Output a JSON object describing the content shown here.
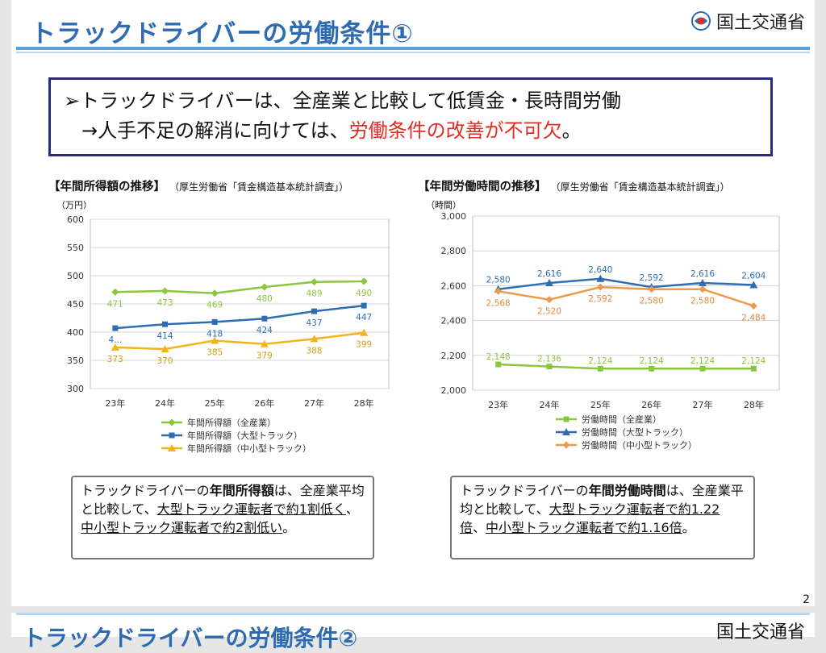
{
  "header": {
    "title": "トラックドライバーの労働条件①",
    "ministry": "国土交通省"
  },
  "summary": {
    "line1": "➢トラックドライバーは、全産業と比較して低賃金・長時間労働",
    "line2_pre": "→人手不足の解消に向けては、",
    "line2_red": "労働条件の改善が不可欠",
    "line2_post": "。"
  },
  "colors": {
    "green": "#8cc63e",
    "blue": "#2e6db4",
    "orange": "#f5b31b",
    "orange2": "#ee9a4d",
    "title": "#2f6bb0",
    "frame": "#2b2a78",
    "red": "#e32d22"
  },
  "chart_data": [
    {
      "type": "line",
      "title": "【年間所得額の推移】",
      "source": "（厚生労働省「賃金構造基本統計調査」）",
      "ylabel": "（万円）",
      "ylim": [
        300,
        600
      ],
      "yticks": [
        "300",
        "350",
        "400",
        "450",
        "500",
        "550",
        "600"
      ],
      "categories": [
        "23年",
        "24年",
        "25年",
        "26年",
        "27年",
        "28年"
      ],
      "series": [
        {
          "name": "年間所得額（全産業）",
          "values": [
            471,
            473,
            469,
            480,
            489,
            490
          ],
          "labels": [
            "471",
            "473",
            "469",
            "480",
            "489",
            "490"
          ]
        },
        {
          "name": "年間所得額（大型トラック）",
          "values": [
            407,
            414,
            418,
            424,
            437,
            447
          ],
          "labels": [
            "4...",
            "414",
            "418",
            "424",
            "437",
            "447"
          ]
        },
        {
          "name": "年間所得額（中小型トラック）",
          "values": [
            373,
            370,
            385,
            379,
            388,
            399
          ],
          "labels": [
            "373",
            "370",
            "385",
            "379",
            "388",
            "399"
          ]
        }
      ],
      "grid": true,
      "legend": "bottom"
    },
    {
      "type": "line",
      "title": "【年間労働時間の推移】",
      "source": "（厚生労働省「賃金構造基本統計調査」）",
      "ylabel": "（時間）",
      "ylim": [
        2000,
        3000
      ],
      "yticks": [
        "2,000",
        "2,200",
        "2,400",
        "2,600",
        "2,800",
        "3,000"
      ],
      "categories": [
        "23年",
        "24年",
        "25年",
        "26年",
        "27年",
        "28年"
      ],
      "series": [
        {
          "name": "労働時間（全産業）",
          "values": [
            2148,
            2136,
            2124,
            2124,
            2124,
            2124
          ],
          "labels": [
            "2,148",
            "2,136",
            "2,124",
            "2,124",
            "2,124",
            "2,124"
          ]
        },
        {
          "name": "労働時間（大型トラック）",
          "values": [
            2580,
            2616,
            2640,
            2592,
            2616,
            2604
          ],
          "labels": [
            "2,580",
            "2,616",
            "2,640",
            "2,592",
            "2,616",
            "2,604"
          ]
        },
        {
          "name": "労働時間（中小型トラック）",
          "values": [
            2568,
            2520,
            2592,
            2580,
            2580,
            2484
          ],
          "labels": [
            "2,568",
            "2,520",
            "2,592",
            "2,580",
            "2,580",
            "2,484"
          ]
        }
      ],
      "grid": true,
      "legend": "bottom"
    }
  ],
  "notes": {
    "left": {
      "t1": "トラックドライバーの",
      "b1": "年間所得額",
      "t2": "は、全産業平均と比較して、",
      "u1": "大型トラック運転者で約1割低く",
      "t3": "、",
      "u2": "中小型トラック運転者で約2割低い",
      "t4": "。"
    },
    "right": {
      "t1": "トラックドライバーの",
      "b1": "年間労働時間",
      "t2": "は、全産業平均と比較して、",
      "u1": "大型トラック運転者で約1.22倍",
      "t3": "、",
      "u2": "中小型トラック運転者で約1.16倍",
      "t4": "。"
    }
  },
  "page_number": "2",
  "next_slide": {
    "title": "トラックドライバーの労働条件②",
    "ministry": "国土交通省"
  }
}
